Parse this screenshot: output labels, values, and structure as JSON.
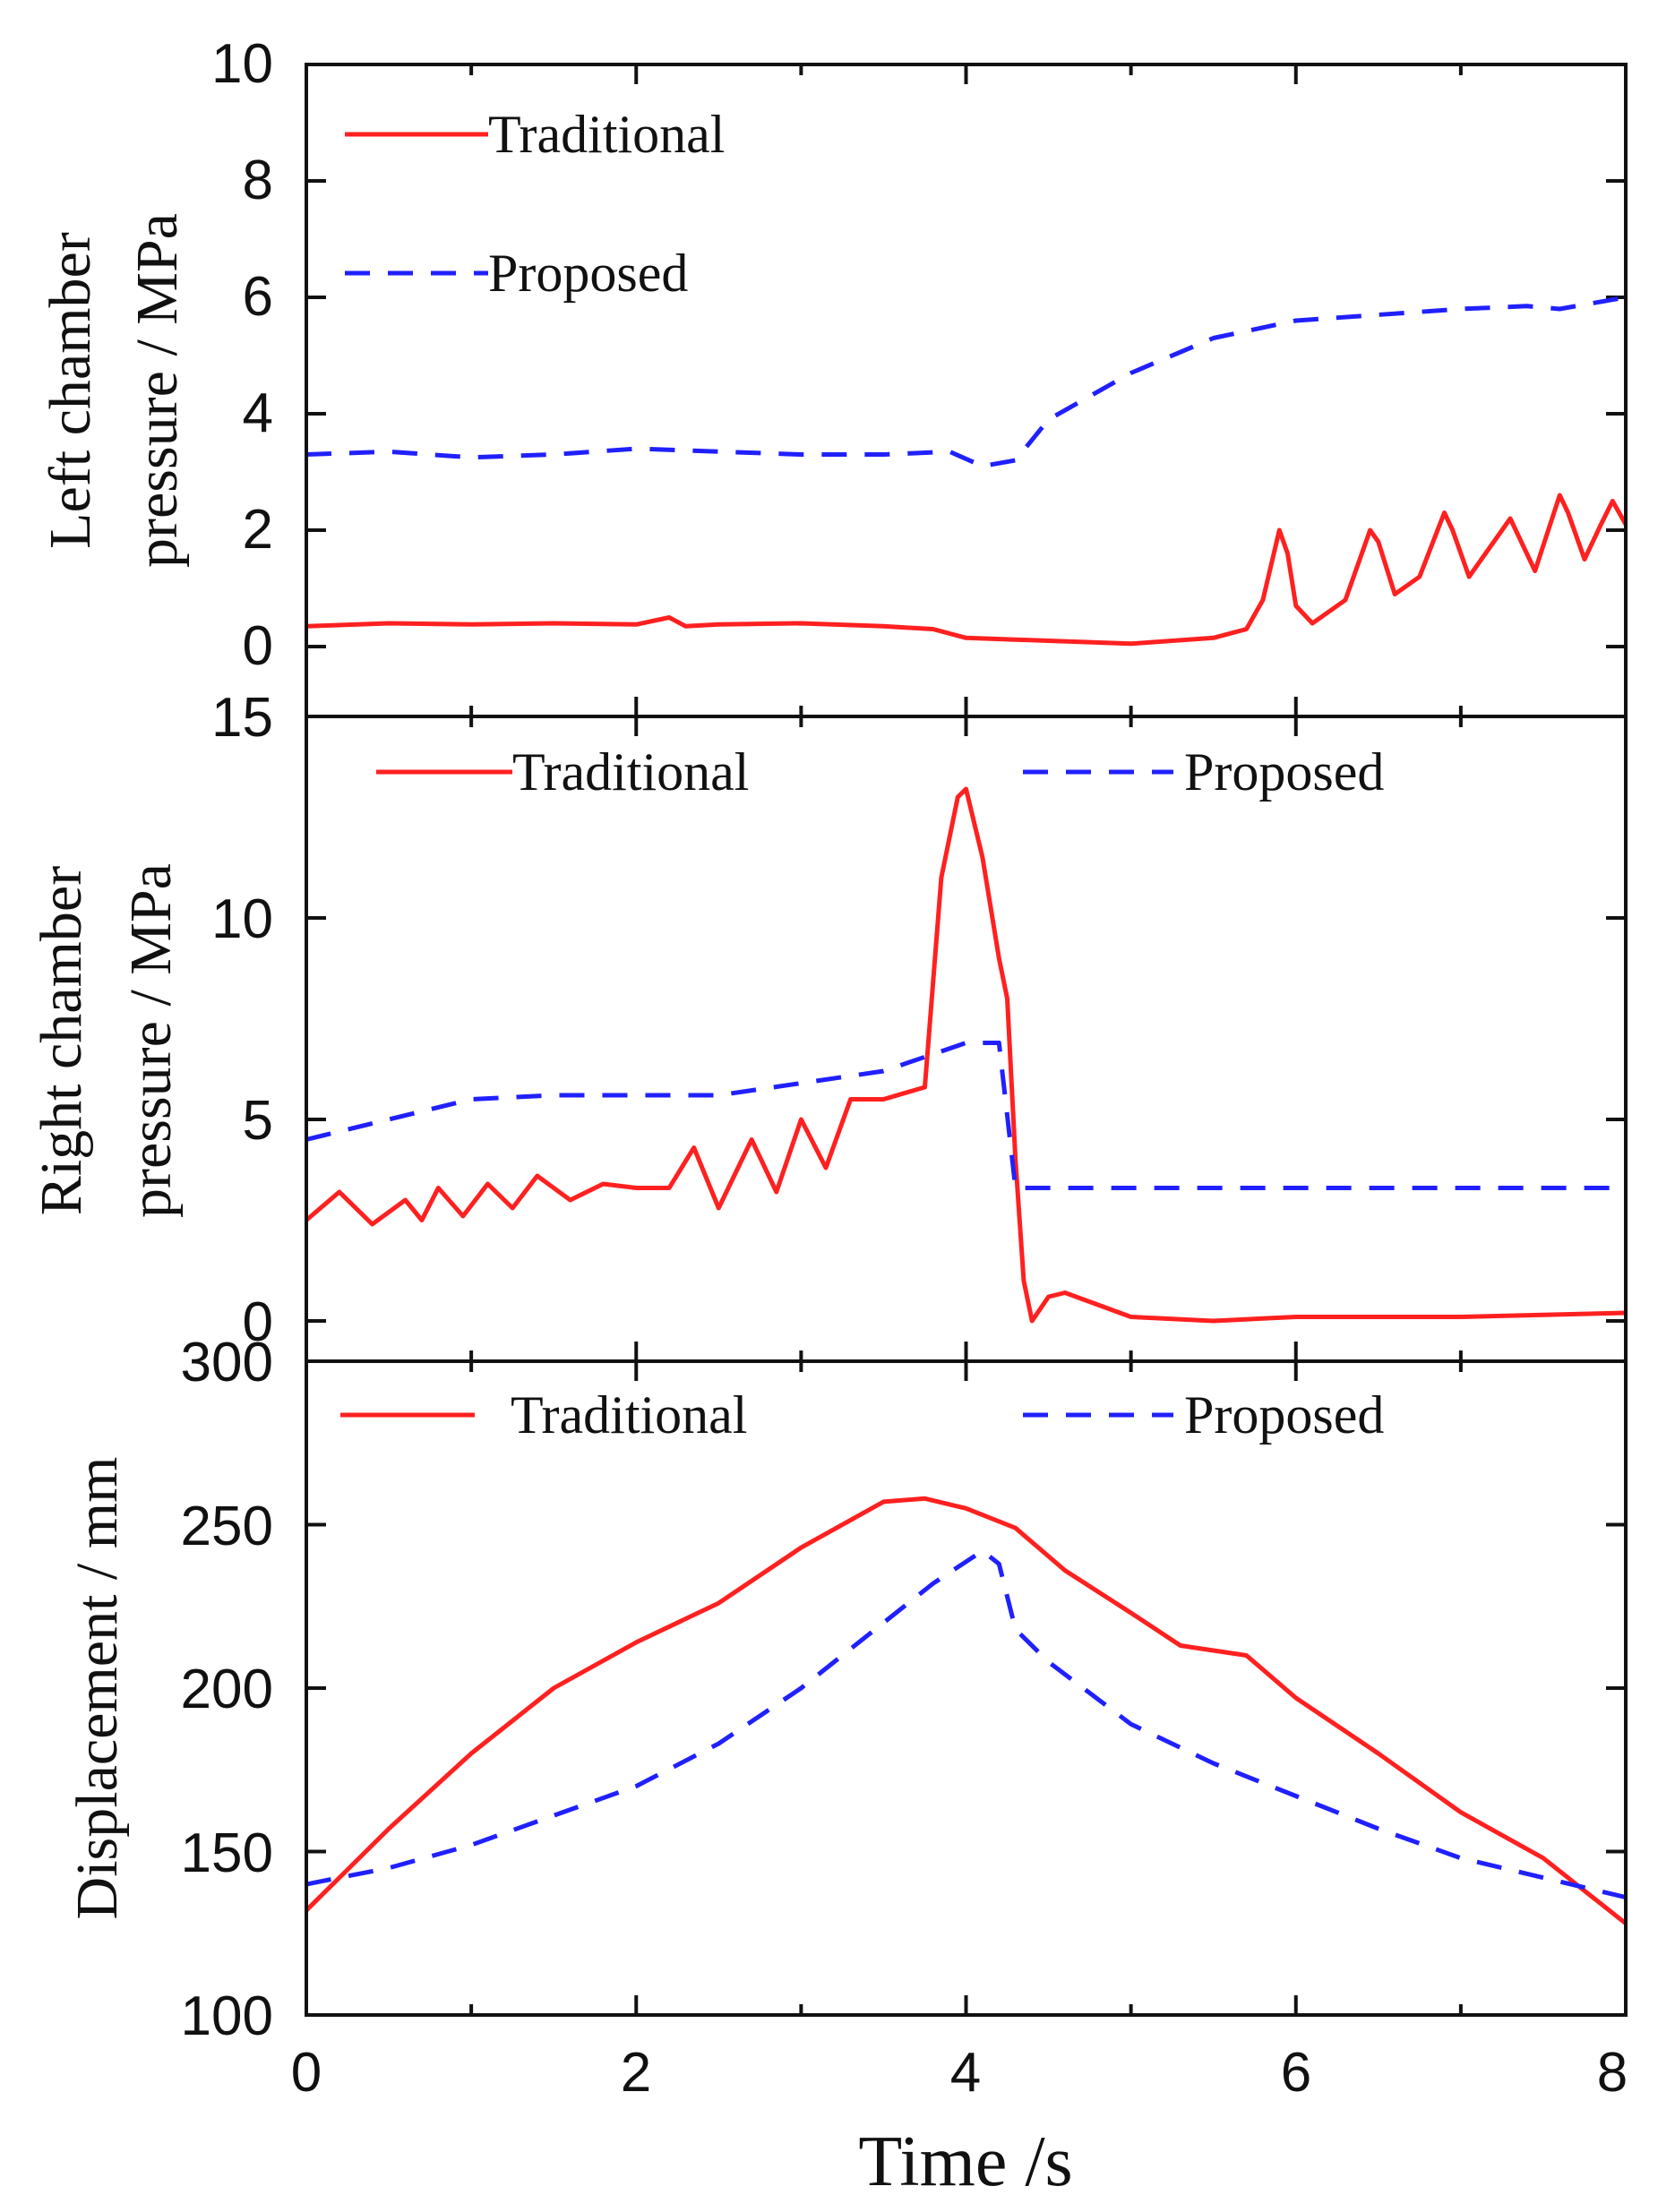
{
  "chart_data": [
    {
      "id": "left",
      "type": "line",
      "ylabel_lines": [
        "Left chamber",
        "pressure / MPa"
      ],
      "ylim": [
        -1.2,
        10
      ],
      "yticks": [
        "0",
        "2",
        "4",
        "6",
        "8",
        "10"
      ],
      "legend": {
        "layout": "stacked-left"
      },
      "series": [
        {
          "name": "Traditional",
          "color": "#ff2020",
          "style": "solid",
          "x": [
            0,
            0.5,
            1,
            1.5,
            2,
            2.2,
            2.3,
            2.5,
            3,
            3.5,
            3.8,
            4,
            4.5,
            5,
            5.5,
            5.7,
            5.8,
            5.9,
            5.95,
            6,
            6.1,
            6.3,
            6.45,
            6.5,
            6.6,
            6.75,
            6.9,
            6.95,
            7.05,
            7.15,
            7.3,
            7.45,
            7.6,
            7.65,
            7.75,
            7.85,
            7.92,
            8
          ],
          "y": [
            0.35,
            0.4,
            0.38,
            0.4,
            0.38,
            0.5,
            0.35,
            0.38,
            0.4,
            0.35,
            0.3,
            0.15,
            0.1,
            0.05,
            0.15,
            0.3,
            0.8,
            2.0,
            1.6,
            0.7,
            0.4,
            0.8,
            2.0,
            1.8,
            0.9,
            1.2,
            2.3,
            2.0,
            1.2,
            1.6,
            2.2,
            1.3,
            2.6,
            2.3,
            1.5,
            2.1,
            2.5,
            2.1
          ]
        },
        {
          "name": "Proposed",
          "color": "#2020ff",
          "style": "dashed",
          "x": [
            0,
            0.5,
            1,
            1.5,
            2,
            2.5,
            3,
            3.5,
            3.9,
            4.1,
            4.3,
            4.5,
            5,
            5.5,
            6,
            6.5,
            7,
            7.4,
            7.6,
            8
          ],
          "y": [
            3.3,
            3.35,
            3.25,
            3.3,
            3.4,
            3.35,
            3.3,
            3.3,
            3.35,
            3.1,
            3.2,
            3.9,
            4.7,
            5.3,
            5.6,
            5.7,
            5.8,
            5.85,
            5.8,
            6.0
          ]
        }
      ]
    },
    {
      "id": "right",
      "type": "line",
      "ylabel_lines": [
        "Right chamber",
        "pressure / MPa"
      ],
      "ylim": [
        -1,
        15
      ],
      "yticks": [
        "0",
        "5",
        "10",
        "15"
      ],
      "legend": {
        "layout": "row"
      },
      "series": [
        {
          "name": "Traditional",
          "color": "#ff2020",
          "style": "solid",
          "x": [
            0,
            0.2,
            0.4,
            0.6,
            0.7,
            0.8,
            0.95,
            1.1,
            1.25,
            1.4,
            1.6,
            1.8,
            2.0,
            2.2,
            2.35,
            2.5,
            2.7,
            2.85,
            3.0,
            3.15,
            3.3,
            3.5,
            3.75,
            3.85,
            3.95,
            4.0,
            4.1,
            4.2,
            4.25,
            4.3,
            4.35,
            4.4,
            4.5,
            4.6,
            4.8,
            5.0,
            5.5,
            6.0,
            7.0,
            8.0
          ],
          "y": [
            2.5,
            3.2,
            2.4,
            3.0,
            2.5,
            3.3,
            2.6,
            3.4,
            2.8,
            3.6,
            3.0,
            3.4,
            3.3,
            3.3,
            4.3,
            2.8,
            4.5,
            3.2,
            5.0,
            3.8,
            5.5,
            5.5,
            5.8,
            11.0,
            13.0,
            13.2,
            11.5,
            9.0,
            8.0,
            4.0,
            1.0,
            0.0,
            0.6,
            0.7,
            0.4,
            0.1,
            0.0,
            0.1,
            0.1,
            0.2
          ]
        },
        {
          "name": "Proposed",
          "color": "#2020ff",
          "style": "dashed",
          "x": [
            0,
            0.5,
            1,
            1.5,
            2,
            2.5,
            3,
            3.5,
            4,
            4.2,
            4.3,
            4.4,
            5,
            6,
            7,
            8
          ],
          "y": [
            4.5,
            5.0,
            5.5,
            5.6,
            5.6,
            5.6,
            5.9,
            6.2,
            6.9,
            6.9,
            3.3,
            3.3,
            3.3,
            3.3,
            3.3,
            3.3
          ]
        }
      ]
    },
    {
      "id": "disp",
      "type": "line",
      "ylabel_lines": [
        "Displacement / mm"
      ],
      "ylim": [
        100,
        300
      ],
      "yticks": [
        "100",
        "150",
        "200",
        "250",
        "300"
      ],
      "xlim": [
        0,
        8
      ],
      "xticks": [
        "0",
        "2",
        "4",
        "6",
        "8"
      ],
      "xlabel": "Time /s",
      "legend": {
        "layout": "row"
      },
      "series": [
        {
          "name": "Traditional",
          "color": "#ff2020",
          "style": "solid",
          "x": [
            0,
            0.5,
            1,
            1.5,
            2,
            2.5,
            3,
            3.5,
            3.75,
            4,
            4.3,
            4.6,
            5,
            5.3,
            5.7,
            6,
            6.5,
            7,
            7.5,
            8
          ],
          "y": [
            132,
            157,
            180,
            200,
            214,
            226,
            243,
            257,
            258,
            255,
            249,
            236,
            223,
            213,
            210,
            197,
            180,
            162,
            148,
            128
          ]
        },
        {
          "name": "Proposed",
          "color": "#2020ff",
          "style": "dashed",
          "x": [
            0,
            0.5,
            1,
            1.5,
            2,
            2.5,
            3,
            3.5,
            3.8,
            4.1,
            4.2,
            4.3,
            4.5,
            5,
            5.5,
            6,
            6.5,
            7,
            7.5,
            8
          ],
          "y": [
            140,
            145,
            152,
            161,
            170,
            183,
            200,
            220,
            232,
            242,
            238,
            218,
            208,
            189,
            177,
            167,
            157,
            148,
            142,
            136
          ]
        }
      ]
    }
  ]
}
